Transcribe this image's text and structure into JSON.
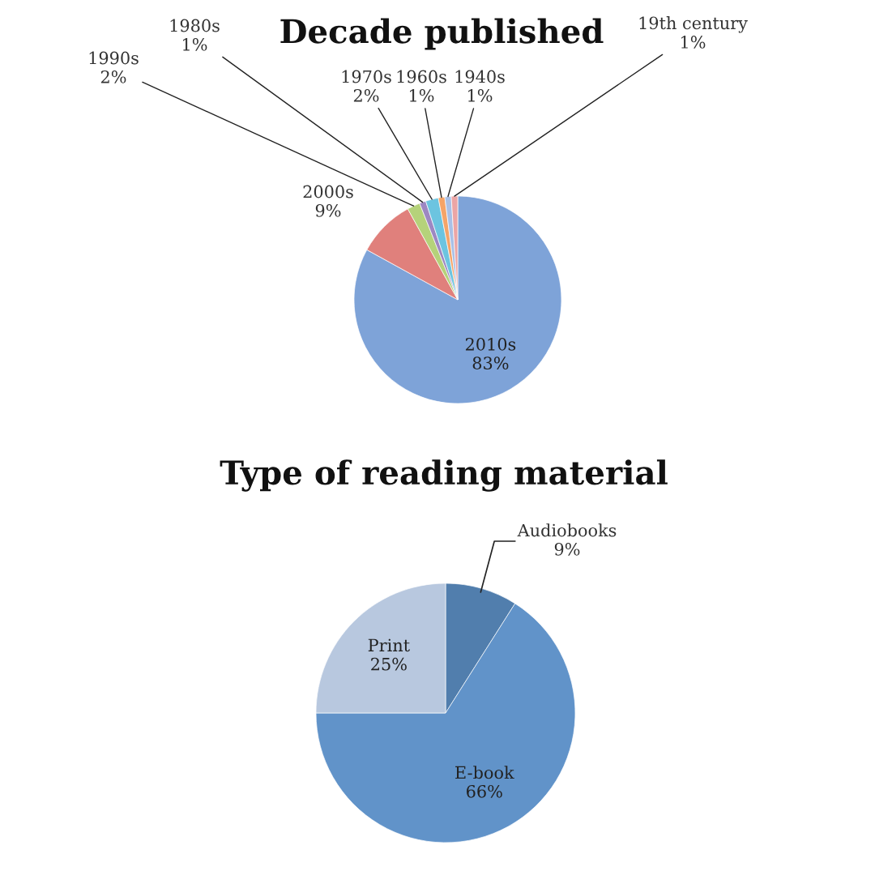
{
  "chart_data": [
    {
      "type": "pie",
      "title": "Decade published",
      "categories": [
        "2010s",
        "2000s",
        "1990s",
        "1980s",
        "1970s",
        "1960s",
        "1940s",
        "19th century"
      ],
      "values": [
        83,
        9,
        2,
        1,
        2,
        1,
        1,
        1
      ],
      "value_labels": [
        "83%",
        "9%",
        "2%",
        "1%",
        "2%",
        "1%",
        "1%",
        "1%"
      ],
      "colors": [
        "#7ea3d8",
        "#e0807c",
        "#b5d27a",
        "#9d87c2",
        "#6cc4e0",
        "#f5a468",
        "#a9c0e6",
        "#eba5a5"
      ]
    },
    {
      "type": "pie",
      "title": "Type of reading material",
      "categories": [
        "Audiobooks",
        "E-book",
        "Print"
      ],
      "values": [
        9,
        66,
        25
      ],
      "value_labels": [
        "9%",
        "66%",
        "25%"
      ],
      "colors": [
        "#517ead",
        "#6193c9",
        "#b8c8df"
      ]
    }
  ]
}
